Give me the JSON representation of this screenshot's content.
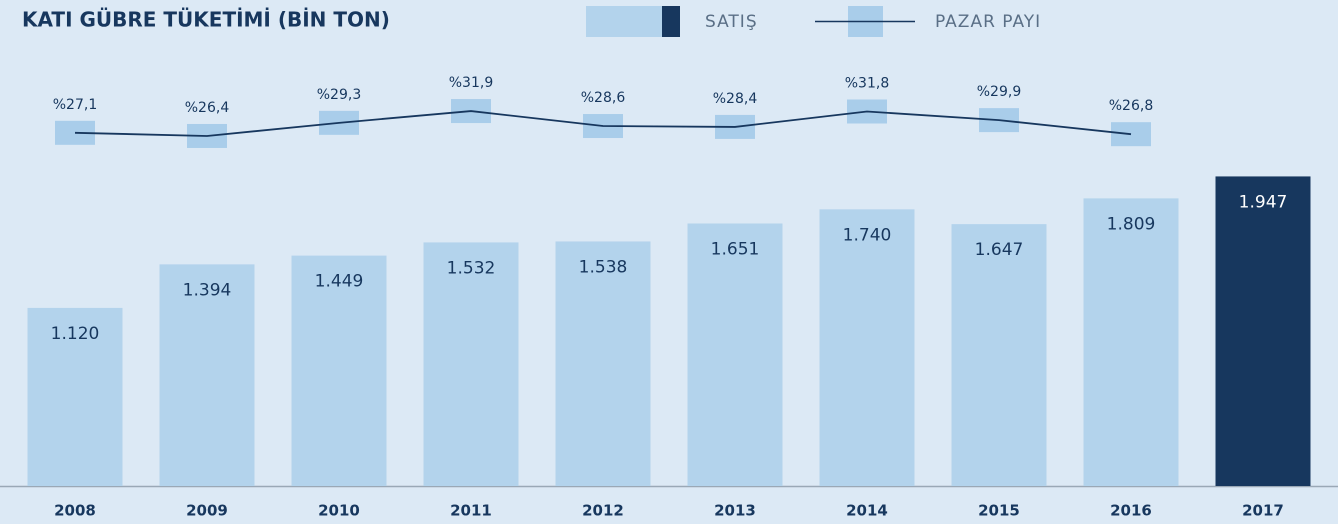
{
  "chart_data": {
    "type": "bar_line",
    "title": "KATI GÜBRE TÜKETİMİ (BİN TON)",
    "categories": [
      "2008",
      "2009",
      "2010",
      "2011",
      "2012",
      "2013",
      "2014",
      "2015",
      "2016",
      "2017"
    ],
    "series": [
      {
        "name": "SATIŞ",
        "type": "bar",
        "color": "#b3d3ec",
        "highlight_color": "#17375e",
        "colors": [
          "#b3d3ec",
          "#b3d3ec",
          "#b3d3ec",
          "#b3d3ec",
          "#b3d3ec",
          "#b3d3ec",
          "#b3d3ec",
          "#b3d3ec",
          "#b3d3ec",
          "#17375e"
        ],
        "values": [
          1120,
          1394,
          1449,
          1532,
          1538,
          1651,
          1740,
          1647,
          1809,
          1947
        ],
        "value_labels": [
          "1.120",
          "1.394",
          "1.449",
          "1.532",
          "1.538",
          "1.651",
          "1.740",
          "1.647",
          "1.809",
          "1.947"
        ]
      },
      {
        "name": "PAZAR PAYI",
        "type": "line",
        "axis": "y2",
        "color": "#17375e",
        "marker_color": "#a9cdea",
        "values": [
          27.1,
          26.4,
          29.3,
          31.9,
          28.6,
          28.4,
          31.8,
          29.9,
          26.8,
          null
        ],
        "value_labels": [
          "%27,1",
          "%26,4",
          "%29,3",
          "%31,9",
          "%28,6",
          "%28,4",
          "%31,8",
          "%29,9",
          "%26,8",
          null
        ]
      }
    ],
    "ylim": [
      0,
      2000
    ],
    "y2lim": [
      20,
      35
    ]
  }
}
